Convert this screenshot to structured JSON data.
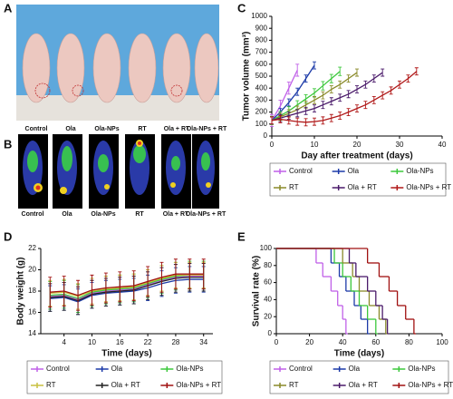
{
  "panels": {
    "A": {
      "letter": "A",
      "labels": [
        "Control",
        "Ola",
        "Ola-NPs",
        "RT",
        "Ola + RT",
        "Ola-NPs + RT"
      ]
    },
    "B": {
      "letter": "B",
      "labels": [
        "Control",
        "Ola",
        "Ola-NPs",
        "RT",
        "Ola + RT",
        "Ola-NPs + RT"
      ]
    }
  },
  "chart_data": [
    {
      "type": "line",
      "panel_label": "C",
      "xlabel": "Day after treatment (days)",
      "ylabel": "Tumor volume (mm³)",
      "xlim": [
        0,
        40
      ],
      "xticks": [
        0,
        10,
        20,
        30,
        40
      ],
      "ylim": [
        0,
        1000
      ],
      "yticks": [
        0,
        100,
        200,
        300,
        400,
        500,
        600,
        700,
        800,
        900,
        1000
      ],
      "series": [
        {
          "name": "Control",
          "color": "#c060e8",
          "x": [
            0,
            2,
            4,
            6
          ],
          "values": [
            130,
            250,
            400,
            550
          ],
          "error": 50
        },
        {
          "name": "Ola",
          "color": "#1c3aa8",
          "x": [
            0,
            2,
            4,
            6,
            8,
            10
          ],
          "values": [
            130,
            200,
            280,
            370,
            480,
            590
          ],
          "error": 30
        },
        {
          "name": "Ola-NPs",
          "color": "#3cc83c",
          "x": [
            0,
            2,
            4,
            6,
            8,
            10,
            12,
            14,
            16
          ],
          "values": [
            130,
            170,
            210,
            260,
            310,
            360,
            420,
            480,
            540
          ],
          "error": 35
        },
        {
          "name": "RT",
          "color": "#8a8a2a",
          "x": [
            0,
            2,
            4,
            6,
            8,
            10,
            12,
            14,
            16,
            18,
            20
          ],
          "values": [
            130,
            160,
            190,
            220,
            260,
            300,
            340,
            390,
            430,
            480,
            530
          ],
          "error": 30
        },
        {
          "name": "Ola + RT",
          "color": "#4a1a6a",
          "x": [
            0,
            2,
            4,
            6,
            8,
            10,
            12,
            14,
            16,
            18,
            20,
            22,
            24,
            26
          ],
          "values": [
            130,
            150,
            170,
            190,
            210,
            230,
            260,
            290,
            320,
            350,
            390,
            430,
            480,
            530
          ],
          "error": 30
        },
        {
          "name": "Ola-NPs + RT",
          "color": "#b01818",
          "x": [
            0,
            2,
            4,
            6,
            8,
            10,
            12,
            14,
            16,
            18,
            20,
            22,
            24,
            26,
            28,
            30,
            32,
            34
          ],
          "values": [
            130,
            140,
            130,
            120,
            115,
            120,
            130,
            150,
            170,
            200,
            230,
            260,
            300,
            340,
            380,
            430,
            480,
            540
          ],
          "error": 30
        }
      ]
    },
    {
      "type": "line",
      "panel_label": "D",
      "xlabel": "Time (days)",
      "ylabel": "Body weight (g)",
      "xlim": [
        -1,
        36
      ],
      "xticks": [
        4,
        10,
        16,
        22,
        28,
        34
      ],
      "ylim": [
        14,
        22
      ],
      "yticks": [
        14,
        16,
        18,
        20,
        22
      ],
      "x": [
        1,
        4,
        7,
        10,
        13,
        16,
        19,
        22,
        25,
        28,
        31,
        34
      ],
      "series": [
        {
          "name": "Control",
          "color": "#c060e8",
          "values": [
            17.5,
            17.6,
            17.2,
            17.8,
            18.0,
            18.1,
            18.2,
            18.6,
            19.0,
            19.3,
            19.4,
            19.4
          ],
          "error": 1.2
        },
        {
          "name": "Ola",
          "color": "#1c3aa8",
          "values": [
            17.3,
            17.4,
            17.0,
            17.6,
            17.8,
            17.9,
            18.0,
            18.3,
            18.7,
            19.0,
            19.1,
            19.1
          ],
          "error": 1.2
        },
        {
          "name": "Ola-NPs",
          "color": "#3cc83c",
          "values": [
            17.6,
            17.7,
            17.3,
            17.9,
            18.1,
            18.2,
            18.3,
            18.7,
            19.1,
            19.4,
            19.5,
            19.5
          ],
          "error": 1.3
        },
        {
          "name": "RT",
          "color": "#c8c040",
          "values": [
            17.8,
            17.9,
            17.5,
            18.0,
            18.2,
            18.3,
            18.4,
            18.8,
            19.2,
            19.5,
            19.5,
            19.5
          ],
          "error": 1.2
        },
        {
          "name": "Ola + RT",
          "color": "#222222",
          "values": [
            17.4,
            17.5,
            17.1,
            17.7,
            17.9,
            18.0,
            18.1,
            18.5,
            18.9,
            19.2,
            19.3,
            19.3
          ],
          "error": 1.3
        },
        {
          "name": "Ola-NPs + RT",
          "color": "#a01010",
          "values": [
            17.9,
            18.0,
            17.6,
            18.1,
            18.3,
            18.4,
            18.5,
            18.9,
            19.3,
            19.6,
            19.6,
            19.6
          ],
          "error": 1.4
        }
      ]
    },
    {
      "type": "step",
      "panel_label": "E",
      "xlabel": "Time (days)",
      "ylabel": "Survival rate (%)",
      "xlim": [
        0,
        100
      ],
      "xticks": [
        0,
        20,
        40,
        60,
        80,
        100
      ],
      "ylim": [
        0,
        100
      ],
      "yticks": [
        0,
        20,
        40,
        60,
        80,
        100
      ],
      "series": [
        {
          "name": "Control",
          "color": "#c060e8",
          "x": [
            0,
            24,
            28,
            33,
            37,
            40,
            42
          ],
          "values": [
            100,
            83,
            67,
            50,
            33,
            17,
            0
          ]
        },
        {
          "name": "Ola",
          "color": "#1c3aa8",
          "x": [
            0,
            33,
            38,
            42,
            47,
            51,
            55
          ],
          "values": [
            100,
            83,
            67,
            50,
            33,
            17,
            0
          ]
        },
        {
          "name": "Ola-NPs",
          "color": "#3cc83c",
          "x": [
            0,
            35,
            40,
            45,
            50,
            55,
            60
          ],
          "values": [
            100,
            83,
            67,
            50,
            33,
            17,
            0
          ]
        },
        {
          "name": "RT",
          "color": "#8a8a2a",
          "x": [
            0,
            40,
            46,
            50,
            56,
            62,
            66
          ],
          "values": [
            100,
            83,
            67,
            50,
            33,
            17,
            0
          ]
        },
        {
          "name": "Ola + RT",
          "color": "#4a1a6a",
          "x": [
            0,
            44,
            48,
            55,
            60,
            64,
            67
          ],
          "values": [
            100,
            83,
            67,
            50,
            33,
            17,
            0
          ]
        },
        {
          "name": "Ola-NPs + RT",
          "color": "#a01010",
          "x": [
            0,
            55,
            62,
            68,
            73,
            78,
            83
          ],
          "values": [
            100,
            83,
            67,
            50,
            33,
            17,
            0
          ]
        }
      ]
    }
  ]
}
